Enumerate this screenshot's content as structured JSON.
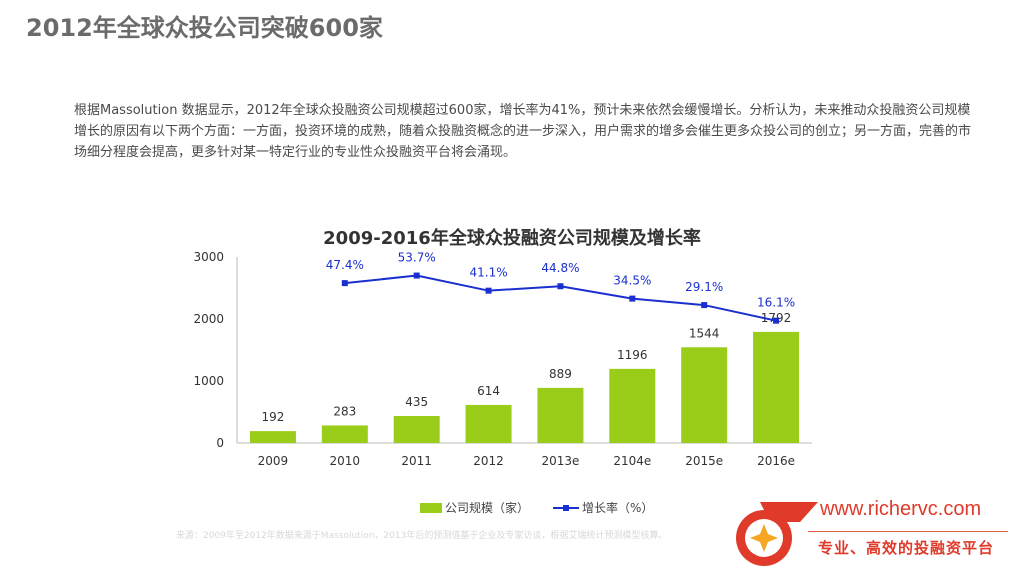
{
  "slide": {
    "title": "2012年全球众投公司突破600家",
    "body": "根据Massolution 数据显示，2012年全球众投融资公司规模超过600家，增长率为41%，预计未来依然会缓慢增长。分析认为，未来推动众投融资公司规模增长的原因有以下两个方面：一方面，投资环境的成熟，随着众投融资概念的进一步深入，用户需求的增多会催生更多众投公司的创立；另一方面，完善的市场细分程度会提高，更多针对某一特定行业的专业性众投融资平台将会涌现。",
    "source": "来源：2009年至2012年数据来源于Massolution，2013年后的预测值基于企业及专家访谈，根据艾瑞统计预测模型核算。"
  },
  "chart_data": {
    "type": "bar",
    "title": "2009-2016年全球众投融资公司规模及增长率",
    "categories": [
      "2009",
      "2010",
      "2011",
      "2012",
      "2013e",
      "2104e",
      "2015e",
      "2016e"
    ],
    "ylim": [
      0,
      3000
    ],
    "yticks": [
      "0",
      "1000",
      "2000",
      "3000"
    ],
    "series": [
      {
        "name": "公司规模（家）",
        "type": "bar",
        "color": "#9ACD1A",
        "values": [
          192,
          283,
          435,
          614,
          889,
          1196,
          1544,
          1792
        ],
        "labels": [
          "192",
          "283",
          "435",
          "614",
          "889",
          "1196",
          "1544",
          "1792"
        ]
      },
      {
        "name": "增长率（%）",
        "type": "line",
        "color": "#1a2fd0",
        "values": [
          null,
          47.4,
          53.7,
          41.1,
          44.8,
          34.5,
          29.1,
          16.1
        ],
        "labels": [
          "",
          "47.4%",
          "53.7%",
          "41.1%",
          "44.8%",
          "34.5%",
          "29.1%",
          "16.1%"
        ]
      }
    ],
    "legend": "bottom"
  },
  "brand": {
    "url": "www.richervc.com",
    "tagline": "专业、高效的投融资平台",
    "accent_color": "#e03a2a"
  }
}
